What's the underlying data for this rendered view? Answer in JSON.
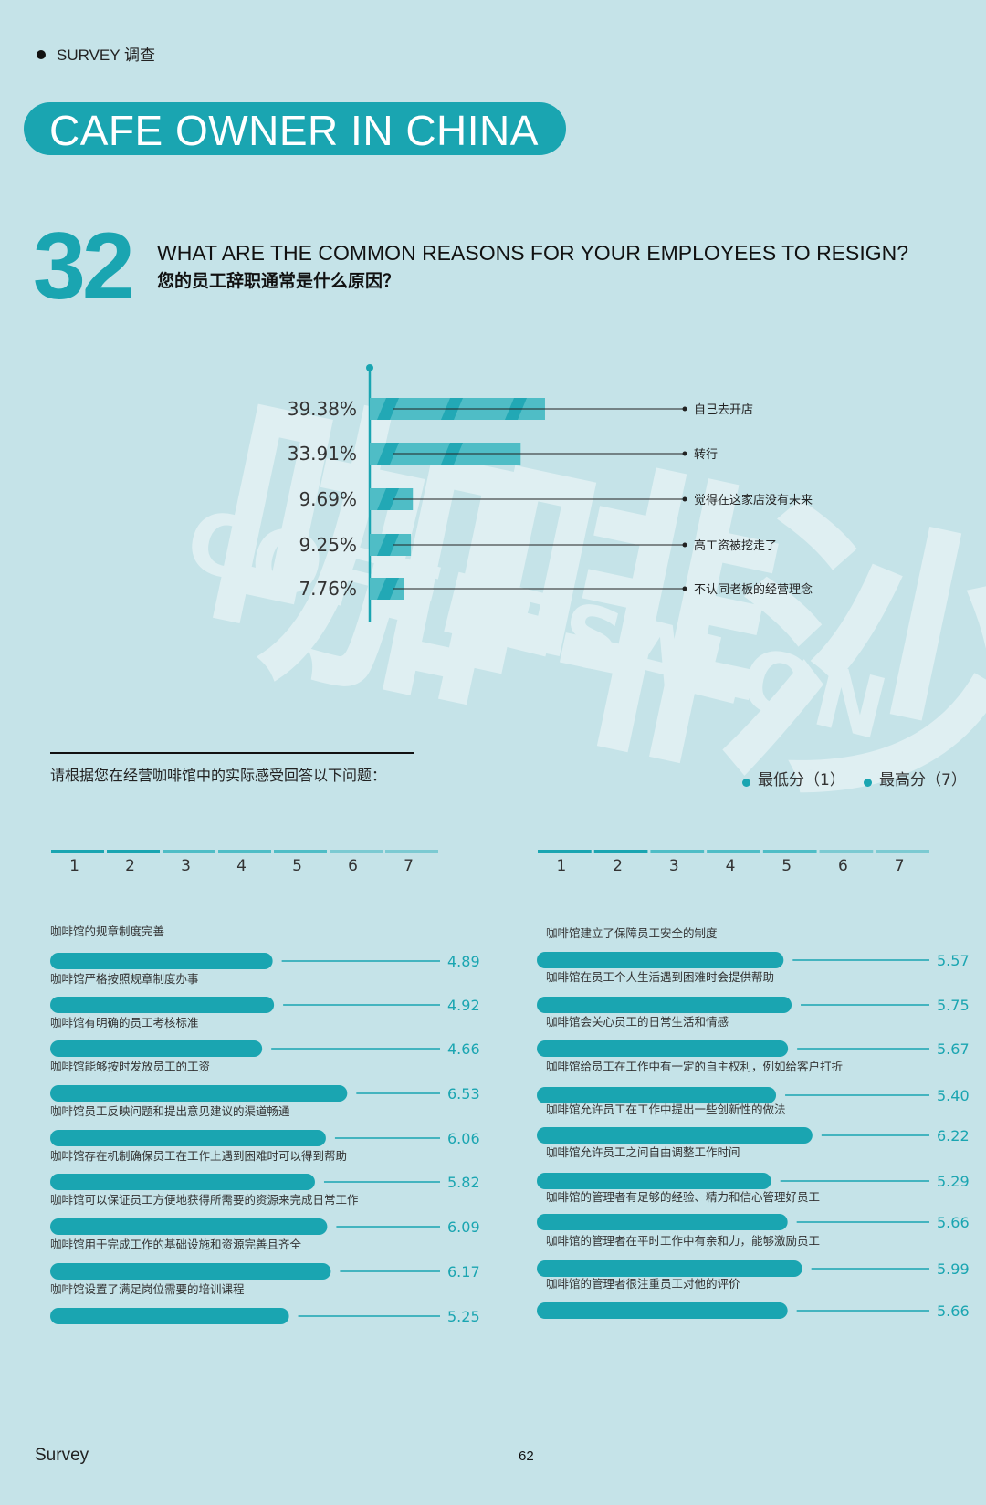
{
  "header": {
    "section_tag": "SURVEY 调查",
    "banner_title": "CAFE OWNER IN CHINA"
  },
  "question": {
    "number": "32",
    "title_en": "WHAT ARE THE COMMON REASONS FOR YOUR EMPLOYEES TO RESIGN?",
    "title_zh": "您的员工辞职通常是什么原因？"
  },
  "watermark": {
    "text_zh": "咖啡沙龍",
    "text_en": "COFFEESALON"
  },
  "colors": {
    "background": "#c5e3e8",
    "accent": "#1aa5b1",
    "accent_light": "#4fbdc6",
    "scale_light": "#7ccad2"
  },
  "scale_section": {
    "instruction": "请根据您在经营咖啡馆中的实际感受回答以下问题：",
    "legend": [
      {
        "label": "最低分（1）"
      },
      {
        "label": "最高分（7）"
      }
    ],
    "scale_ticks": [
      "1",
      "2",
      "3",
      "4",
      "5",
      "6",
      "7"
    ]
  },
  "chart_data": [
    {
      "type": "bar",
      "orientation": "horizontal",
      "categories": [
        "自己去开店",
        "转行",
        "觉得在这家店没有未来",
        "高工资被挖走了",
        "不认同老板的经营理念"
      ],
      "values": [
        39.38,
        33.91,
        9.69,
        9.25,
        7.76
      ],
      "value_labels": [
        "39.38%",
        "33.91%",
        "9.69%",
        "9.25%",
        "7.76%"
      ],
      "unit": "%"
    },
    {
      "type": "bar",
      "orientation": "horizontal",
      "scale_range": [
        1,
        7
      ],
      "categories": [
        "咖啡馆的规章制度完善",
        "咖啡馆严格按照规章制度办事",
        "咖啡馆有明确的员工考核标准",
        "咖啡馆能够按时发放员工的工资",
        "咖啡馆员工反映问题和提出意见建议的渠道畅通",
        "咖啡馆存在机制确保员工在工作上遇到困难时可以得到帮助",
        "咖啡馆可以保证员工方便地获得所需要的资源来完成日常工作",
        "咖啡馆用于完成工作的基础设施和资源完善且齐全",
        "咖啡馆设置了满足岗位需要的培训课程"
      ],
      "values": [
        4.89,
        4.92,
        4.66,
        6.53,
        6.06,
        5.82,
        6.09,
        6.17,
        5.25
      ],
      "value_labels": [
        "4.89",
        "4.92",
        "4.66",
        "6.53",
        "6.06",
        "5.82",
        "6.09",
        "6.17",
        "5.25"
      ]
    },
    {
      "type": "bar",
      "orientation": "horizontal",
      "scale_range": [
        1,
        7
      ],
      "categories": [
        "咖啡馆建立了保障员工安全的制度",
        "咖啡馆在员工个人生活遇到困难时会提供帮助",
        "咖啡馆会关心员工的日常生活和情感",
        "咖啡馆给员工在工作中有一定的自主权利，例如给客户打折",
        "咖啡馆允许员工在工作中提出一些创新性的做法",
        "咖啡馆允许员工之间自由调整工作时间",
        "咖啡馆的管理者有足够的经验、精力和信心管理好员工",
        "咖啡馆的管理者在平时工作中有亲和力，能够激励员工",
        "咖啡馆的管理者很注重员工对他的评价"
      ],
      "values": [
        5.57,
        5.75,
        5.67,
        5.4,
        6.22,
        5.29,
        5.66,
        5.99,
        5.66
      ],
      "value_labels": [
        "5.57",
        "5.75",
        "5.67",
        "5.40",
        "6.22",
        "5.29",
        "5.66",
        "5.99",
        "5.66"
      ]
    }
  ],
  "footer": {
    "left": "Survey",
    "page_number": "62"
  }
}
